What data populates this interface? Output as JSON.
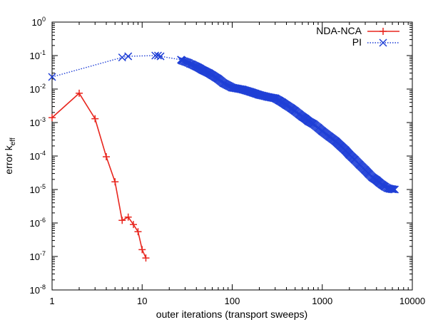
{
  "chart_data": {
    "type": "line",
    "title": "",
    "xlabel": "outer iterations (transport sweeps)",
    "ylabel": {
      "main": "error k",
      "sub": "eff"
    },
    "x_scale": "log",
    "y_scale": "log",
    "xlim": [
      1,
      10000
    ],
    "ylim": [
      1e-08,
      1
    ],
    "x_ticks": [
      {
        "value": 1,
        "label": "1"
      },
      {
        "value": 10,
        "label": "10"
      },
      {
        "value": 100,
        "label": "100"
      },
      {
        "value": 1000,
        "label": "1000"
      },
      {
        "value": 10000,
        "label": "10000"
      }
    ],
    "y_ticks": [
      {
        "value": 1e-08,
        "base": "10",
        "exp": "-8"
      },
      {
        "value": 1e-07,
        "base": "10",
        "exp": "-7"
      },
      {
        "value": 1e-06,
        "base": "10",
        "exp": "-6"
      },
      {
        "value": 1e-05,
        "base": "10",
        "exp": "-5"
      },
      {
        "value": 0.0001,
        "base": "10",
        "exp": "-4"
      },
      {
        "value": 0.001,
        "base": "10",
        "exp": "-3"
      },
      {
        "value": 0.01,
        "base": "10",
        "exp": "-2"
      },
      {
        "value": 0.1,
        "base": "10",
        "exp": "-1"
      },
      {
        "value": 1,
        "base": "10",
        "exp": "0"
      }
    ],
    "grid": false,
    "legend_position": "top-right",
    "series": [
      {
        "name": "NDA-NCA",
        "color": "#e8261e",
        "marker": "plus",
        "line": "solid",
        "x": [
          1,
          2,
          3,
          4,
          5,
          6,
          7,
          8,
          9,
          10,
          11
        ],
        "y": [
          0.0014,
          0.0075,
          0.0013,
          9.5e-05,
          1.7e-05,
          1.2e-06,
          1.5e-06,
          9e-07,
          5.5e-07,
          1.6e-07,
          9e-08
        ]
      },
      {
        "name": "PI",
        "color": "#1f3fd6",
        "marker": "x",
        "line": "dotted",
        "x": [
          1,
          6,
          7,
          14,
          15,
          16,
          27,
          28,
          29,
          30,
          31,
          32,
          33,
          34,
          36,
          38,
          40,
          42,
          44,
          46,
          48,
          50,
          55,
          60,
          70,
          80,
          100,
          130,
          160,
          200,
          250,
          300,
          330,
          360,
          400,
          450,
          500,
          550,
          600,
          650,
          700,
          800,
          900,
          1000,
          1200,
          1400,
          1600,
          1800,
          2000,
          2300,
          2600,
          3000,
          3300,
          3600,
          4000,
          4300,
          4600,
          5000,
          5300,
          5600,
          6000,
          6400
        ],
        "y": [
          0.023,
          0.088,
          0.095,
          0.1,
          0.1,
          0.095,
          0.075,
          0.07,
          0.068,
          0.066,
          0.064,
          0.062,
          0.06,
          0.057,
          0.054,
          0.05,
          0.047,
          0.044,
          0.041,
          0.038,
          0.036,
          0.034,
          0.03,
          0.026,
          0.02,
          0.015,
          0.011,
          0.0097,
          0.0082,
          0.0067,
          0.0058,
          0.0053,
          0.0046,
          0.004,
          0.0033,
          0.0027,
          0.0022,
          0.0018,
          0.0015,
          0.0013,
          0.0011,
          0.0009,
          0.0007,
          0.00055,
          0.00038,
          0.00028,
          0.0002,
          0.00015,
          0.00011,
          7.7e-05,
          5.5e-05,
          3.8e-05,
          2.9e-05,
          2.3e-05,
          1.9e-05,
          1.6e-05,
          1.4e-05,
          1.2e-05,
          1.1e-05,
          1.05e-05,
          1.02e-05,
          1e-05
        ]
      }
    ]
  }
}
